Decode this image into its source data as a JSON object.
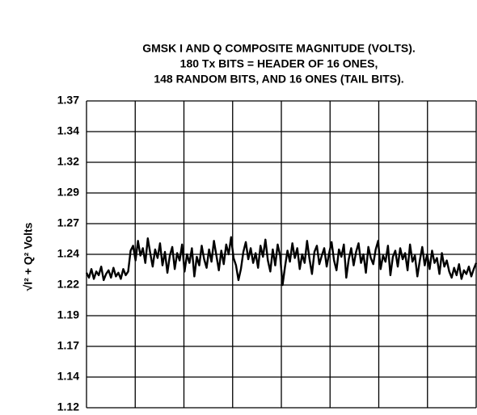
{
  "chart_data": {
    "type": "line",
    "title": "GMSK I AND Q COMPOSITE MAGNITUDE (VOLTS).",
    "subtitle": [
      "180 Tx BITS = HEADER OF 16 ONES,",
      "148 RANDOM BITS, AND 16 ONES (TAIL BITS)."
    ],
    "ylabel": "√I² + Q²  Volts",
    "color": "#000000",
    "grid": true,
    "ylim": [
      1.12,
      1.37
    ],
    "yticks": [
      1.12,
      {
        "value": 1.145,
        "label": "1.14"
      },
      1.17,
      {
        "value": 1.195,
        "label": "1.19"
      },
      1.22,
      {
        "value": 1.245,
        "label": "1.24"
      },
      1.27,
      {
        "value": 1.295,
        "label": "1.29"
      },
      1.32,
      {
        "value": 1.345,
        "label": "1.34"
      },
      1.37
    ],
    "values": [
      1.23,
      1.226,
      1.233,
      1.225,
      1.231,
      1.228,
      1.235,
      1.224,
      1.229,
      1.232,
      1.226,
      1.234,
      1.227,
      1.23,
      1.225,
      1.233,
      1.228,
      1.231,
      1.248,
      1.252,
      1.24,
      1.256,
      1.244,
      1.25,
      1.238,
      1.258,
      1.246,
      1.235,
      1.249,
      1.242,
      1.254,
      1.236,
      1.247,
      1.23,
      1.244,
      1.251,
      1.233,
      1.246,
      1.24,
      1.253,
      1.231,
      1.245,
      1.238,
      1.25,
      1.227,
      1.243,
      1.236,
      1.252,
      1.241,
      1.234,
      1.249,
      1.239,
      1.256,
      1.244,
      1.232,
      1.248,
      1.237,
      1.253,
      1.245,
      1.259,
      1.242,
      1.236,
      1.224,
      1.233,
      1.247,
      1.255,
      1.241,
      1.25,
      1.238,
      1.246,
      1.234,
      1.252,
      1.243,
      1.257,
      1.24,
      1.231,
      1.249,
      1.236,
      1.253,
      1.244,
      1.22,
      1.235,
      1.248,
      1.239,
      1.254,
      1.242,
      1.25,
      1.233,
      1.245,
      1.238,
      1.256,
      1.241,
      1.229,
      1.247,
      1.252,
      1.237,
      1.244,
      1.25,
      1.235,
      1.246,
      1.255,
      1.24,
      1.232,
      1.249,
      1.243,
      1.253,
      1.226,
      1.241,
      1.25,
      1.236,
      1.247,
      1.254,
      1.238,
      1.245,
      1.23,
      1.251,
      1.242,
      1.237,
      1.249,
      1.256,
      1.233,
      1.244,
      1.239,
      1.252,
      1.228,
      1.243,
      1.248,
      1.235,
      1.25,
      1.241,
      1.246,
      1.232,
      1.253,
      1.239,
      1.244,
      1.227,
      1.24,
      1.251,
      1.236,
      1.245,
      1.233,
      1.248,
      1.238,
      1.242,
      1.229,
      1.246,
      1.235,
      1.24,
      1.231,
      1.226,
      1.234,
      1.228,
      1.237,
      1.225,
      1.232,
      1.229,
      1.235,
      1.227,
      1.233,
      1.238
    ]
  }
}
